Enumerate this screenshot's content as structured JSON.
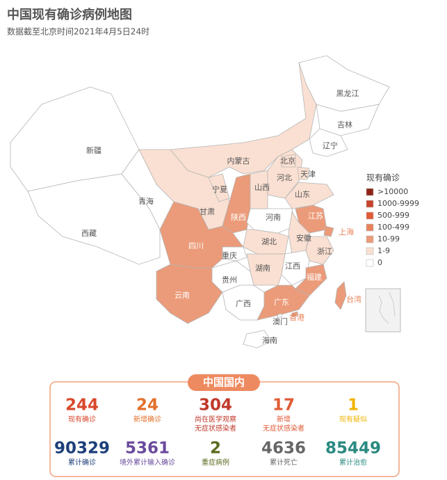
{
  "header": {
    "title": "中国现有确诊病例地图",
    "subtitle": "数据截至北京时间2021年4月5日24时"
  },
  "map": {
    "provinces": [
      {
        "name": "新疆",
        "color": "#ffffff"
      },
      {
        "name": "西藏",
        "color": "#ffffff"
      },
      {
        "name": "青海",
        "color": "#ffffff"
      },
      {
        "name": "甘肃",
        "color": "#fae0d2"
      },
      {
        "name": "宁夏",
        "color": "#fae0d2"
      },
      {
        "name": "内蒙古",
        "color": "#fae0d2"
      },
      {
        "name": "陕西",
        "color": "#eb9b79"
      },
      {
        "name": "四川",
        "color": "#eb9b79"
      },
      {
        "name": "云南",
        "color": "#eb9b79"
      },
      {
        "name": "重庆",
        "color": "#ffffff"
      },
      {
        "name": "贵州",
        "color": "#ffffff"
      },
      {
        "name": "广西",
        "color": "#ffffff"
      },
      {
        "name": "广东",
        "color": "#eb9b79"
      },
      {
        "name": "香港",
        "color": "#eb9b79"
      },
      {
        "name": "澳门",
        "color": "#ffffff"
      },
      {
        "name": "海南",
        "color": "#ffffff"
      },
      {
        "name": "湖南",
        "color": "#fae0d2"
      },
      {
        "name": "湖北",
        "color": "#fae0d2"
      },
      {
        "name": "河南",
        "color": "#ffffff"
      },
      {
        "name": "山西",
        "color": "#fae0d2"
      },
      {
        "name": "河北",
        "color": "#fae0d2"
      },
      {
        "name": "北京",
        "color": "#fae0d2"
      },
      {
        "name": "天津",
        "color": "#fae0d2"
      },
      {
        "name": "山东",
        "color": "#fae0d2"
      },
      {
        "name": "江苏",
        "color": "#eb9b79"
      },
      {
        "name": "上海",
        "color": "#eb9b79"
      },
      {
        "name": "安徽",
        "color": "#fae0d2"
      },
      {
        "name": "浙江",
        "color": "#fae0d2"
      },
      {
        "name": "江西",
        "color": "#ffffff"
      },
      {
        "name": "福建",
        "color": "#eb9b79"
      },
      {
        "name": "台湾",
        "color": "#eb9b79"
      },
      {
        "name": "辽宁",
        "color": "#ffffff"
      },
      {
        "name": "吉林",
        "color": "#ffffff"
      },
      {
        "name": "黑龙江",
        "color": "#ffffff"
      }
    ]
  },
  "legend": {
    "title": "现有确诊",
    "items": [
      {
        "label": ">10000",
        "color": "#8e2416"
      },
      {
        "label": "1000-9999",
        "color": "#c7432a"
      },
      {
        "label": "500-999",
        "color": "#e15a35"
      },
      {
        "label": "100-499",
        "color": "#e8825a"
      },
      {
        "label": "10-99",
        "color": "#eb9b79"
      },
      {
        "label": "1-9",
        "color": "#fae0d2"
      },
      {
        "label": "0",
        "color": "#ffffff"
      }
    ]
  },
  "stats": {
    "title": "中国国内",
    "items": [
      {
        "value": "244",
        "label": [
          "现有确诊"
        ],
        "color": "#d9472b"
      },
      {
        "value": "24",
        "label": [
          "新增确诊"
        ],
        "color": "#e36f2b"
      },
      {
        "value": "304",
        "label": [
          "尚在医学观察",
          "无症状感染者"
        ],
        "color": "#c0392b"
      },
      {
        "value": "17",
        "label": [
          "新增",
          "无症状感染者"
        ],
        "color": "#e05a35"
      },
      {
        "value": "1",
        "label": [
          "现有疑似"
        ],
        "color": "#f0b400"
      },
      {
        "value": "90329",
        "label": [
          "累计确诊"
        ],
        "color": "#1d3f7a"
      },
      {
        "value": "5361",
        "label": [
          "境外累计输入确诊"
        ],
        "color": "#6a4a9c"
      },
      {
        "value": "2",
        "label": [
          "重症病例"
        ],
        "color": "#5a6b1e"
      },
      {
        "value": "4636",
        "label": [
          "累计死亡"
        ],
        "color": "#666666"
      },
      {
        "value": "85449",
        "label": [
          "累计治愈"
        ],
        "color": "#2a8a82"
      }
    ]
  }
}
